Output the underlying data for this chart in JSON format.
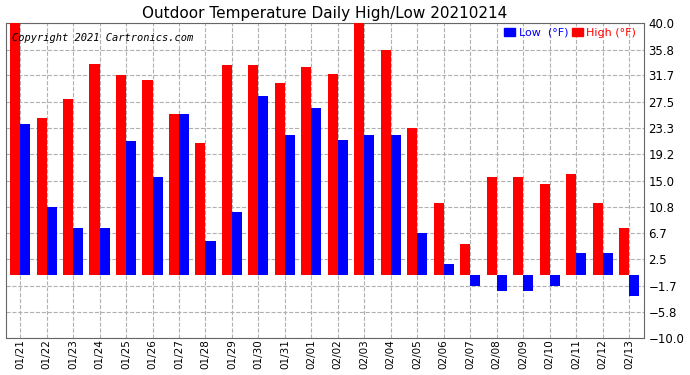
{
  "title": "Outdoor Temperature Daily High/Low 20210214",
  "copyright": "Copyright 2021 Cartronics.com",
  "dates": [
    "01/21",
    "01/22",
    "01/23",
    "01/24",
    "01/25",
    "01/26",
    "01/27",
    "01/28",
    "01/29",
    "01/30",
    "01/31",
    "02/01",
    "02/02",
    "02/03",
    "02/04",
    "02/05",
    "02/06",
    "02/07",
    "02/08",
    "02/09",
    "02/10",
    "02/11",
    "02/12",
    "02/13"
  ],
  "highs": [
    40.0,
    25.0,
    28.0,
    33.5,
    31.7,
    31.0,
    25.5,
    21.0,
    33.3,
    33.3,
    30.5,
    33.0,
    32.0,
    40.0,
    35.8,
    23.3,
    11.5,
    5.0,
    15.5,
    15.5,
    14.5,
    16.0,
    11.5,
    7.5
  ],
  "lows": [
    24.0,
    10.8,
    7.5,
    7.5,
    21.3,
    15.5,
    25.5,
    5.5,
    10.0,
    28.5,
    22.3,
    26.5,
    21.5,
    22.3,
    22.3,
    6.7,
    1.7,
    -1.7,
    -2.5,
    -2.5,
    -1.7,
    3.5,
    3.5,
    -3.3
  ],
  "ylim": [
    -10.0,
    40.0
  ],
  "yticks": [
    -10.0,
    -5.8,
    -1.7,
    2.5,
    6.7,
    10.8,
    15.0,
    19.2,
    23.3,
    27.5,
    31.7,
    35.8,
    40.0
  ],
  "high_color": "#ff0000",
  "low_color": "#0000ff",
  "background_color": "#ffffff",
  "grid_color": "#b0b0b0",
  "title_fontsize": 11,
  "copyright_fontsize": 7.5,
  "bar_width": 0.38
}
